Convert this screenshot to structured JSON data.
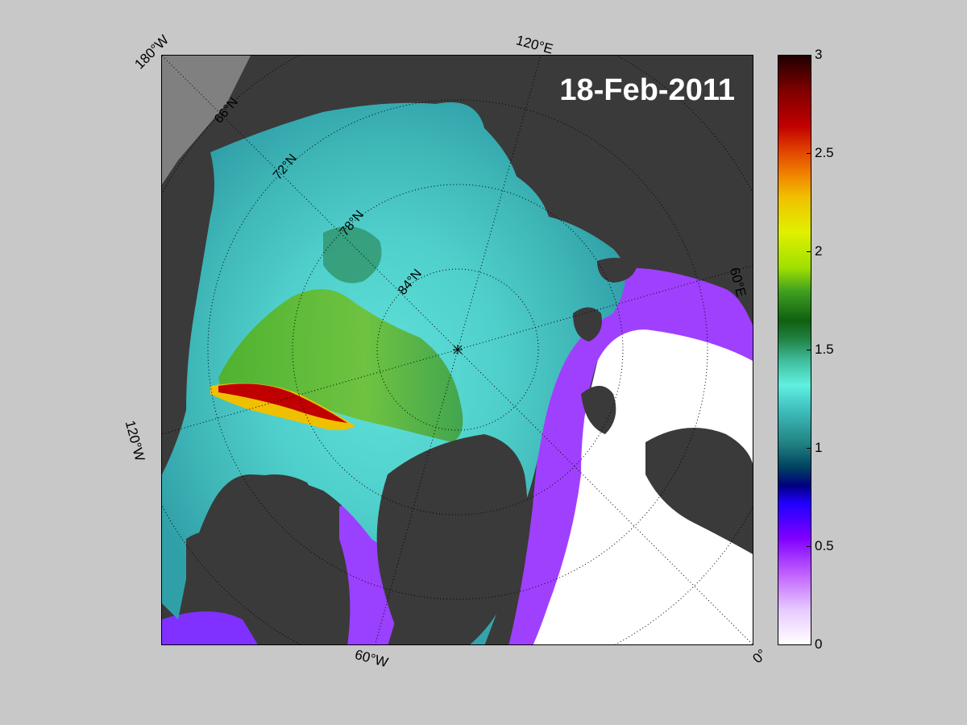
{
  "map": {
    "date": "18-Feb-2011",
    "longitude_labels": [
      "180°W",
      "120°E",
      "60°E",
      "0°",
      "60°W",
      "120°W"
    ],
    "latitude_labels": [
      "66°N",
      "72°N",
      "78°N",
      "84°N"
    ],
    "projection_center": "North Pole"
  },
  "colorbar": {
    "ticks": [
      "3",
      "2.5",
      "2",
      "1.5",
      "1",
      "0.5",
      "0"
    ],
    "min": 0,
    "max": 3
  },
  "colors": {
    "background": "#c8c8c8",
    "land": "#3a3a3a",
    "open_water": "#ffffff",
    "thin_ice": "#a040ff",
    "medium_ice": "#40d0d0",
    "thick_ice": "#40a020",
    "very_thick_ice": "#c00000"
  }
}
